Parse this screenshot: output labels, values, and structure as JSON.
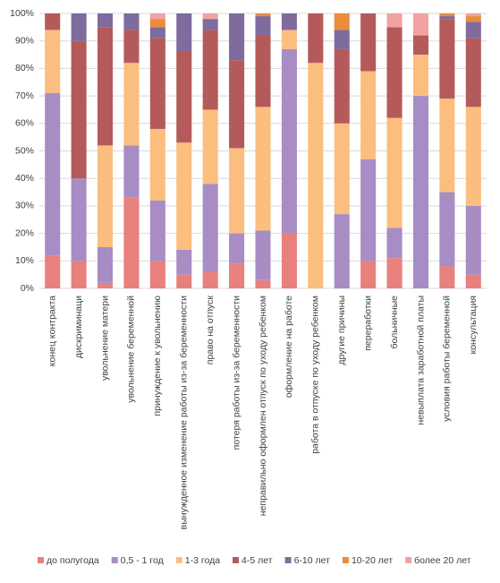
{
  "chart_data": {
    "type": "stacked_bar_100",
    "categories": [
      "конец контракта",
      "дискриминаци",
      "увольнение матери",
      "увольнение беременной",
      "принуждение к увольнению",
      "вынужденное изменение работы из-за беременности",
      "право на отпуск",
      "потеря работы из-за беременности",
      "неправильно оформлен отпуск по уходу ребенком",
      "оформление на работе",
      "работа в отпуске по уходу ребенком",
      "другие причины",
      "переработки",
      "больничные",
      "невыплата заработной платы",
      "условия работы беременной",
      "консультация"
    ],
    "series": [
      {
        "name": "до полугода",
        "color": "#e8807e",
        "values": [
          12,
          10,
          2,
          33,
          10,
          5,
          6,
          9,
          3,
          20,
          0,
          0,
          10,
          11,
          0,
          8,
          5
        ]
      },
      {
        "name": "0,5 - 1 год",
        "color": "#a88cc4",
        "values": [
          59,
          30,
          13,
          19,
          22,
          9,
          32,
          11,
          18,
          67,
          0,
          27,
          37,
          11,
          70,
          27,
          25
        ]
      },
      {
        "name": "1-3 года",
        "color": "#fbbe7e",
        "values": [
          23,
          0,
          37,
          30,
          26,
          39,
          27,
          31,
          45,
          7,
          82,
          33,
          32,
          40,
          15,
          34,
          36
        ]
      },
      {
        "name": "4-5 лет",
        "color": "#b55a5a",
        "values": [
          6,
          50,
          43,
          12,
          33,
          33,
          29,
          32,
          26,
          0,
          18,
          27,
          21,
          33,
          7,
          29,
          25
        ]
      },
      {
        "name": "6-10 лет",
        "color": "#7f6b9d",
        "values": [
          0,
          10,
          5,
          6,
          4,
          14,
          4,
          17,
          7,
          6,
          0,
          7,
          0,
          0,
          0,
          1,
          6
        ]
      },
      {
        "name": "10-20 лет",
        "color": "#e98c3c",
        "values": [
          0,
          0,
          0,
          0,
          3,
          0,
          0,
          0,
          1,
          0,
          0,
          6,
          0,
          0,
          0,
          1,
          2
        ]
      },
      {
        "name": "более 20 лет",
        "color": "#f2a2a2",
        "values": [
          0,
          0,
          0,
          0,
          2,
          0,
          2,
          0,
          0,
          0,
          0,
          0,
          0,
          5,
          8,
          0,
          1
        ]
      }
    ],
    "ylim": [
      0,
      100
    ],
    "yticks": [
      {
        "value": 0,
        "label": "0%"
      },
      {
        "value": 10,
        "label": "10%"
      },
      {
        "value": 20,
        "label": "20%"
      },
      {
        "value": 30,
        "label": "30%"
      },
      {
        "value": 40,
        "label": "40%"
      },
      {
        "value": 50,
        "label": "50%"
      },
      {
        "value": 60,
        "label": "60%"
      },
      {
        "value": 70,
        "label": "70%"
      },
      {
        "value": 80,
        "label": "80%"
      },
      {
        "value": 90,
        "label": "90%"
      },
      {
        "value": 100,
        "label": "100%"
      }
    ],
    "grid": true,
    "legend": "bottom"
  }
}
